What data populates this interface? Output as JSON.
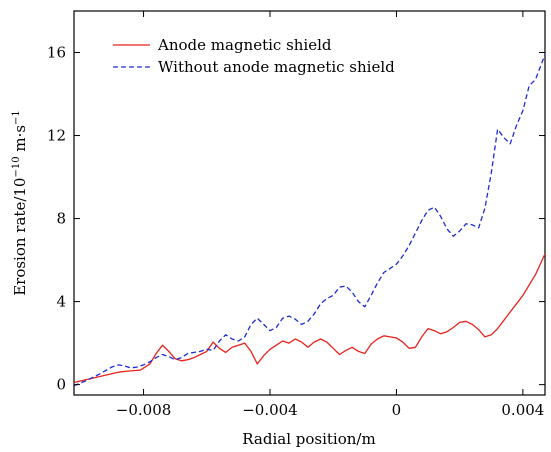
{
  "chart_data": {
    "type": "line",
    "xlabel": "Radial position/m",
    "ylabel": "Erosion rate/10",
    "ylabel_exp": "−10",
    "ylabel_unit": " m·s",
    "ylabel_unit_exp": "−1",
    "xlim": [
      -0.0102,
      0.0047
    ],
    "ylim": [
      -0.5,
      18
    ],
    "x_ticks": [
      -0.008,
      -0.004,
      0,
      0.004
    ],
    "x_tick_labels": [
      "−0.008",
      "−0.004",
      "0",
      "0.004"
    ],
    "y_ticks": [
      0,
      4,
      8,
      12,
      16
    ],
    "y_tick_labels": [
      "0",
      "4",
      "8",
      "12",
      "16"
    ],
    "grid": false,
    "legend_position": "top-left",
    "series": [
      {
        "name": "Anode magnetic shield",
        "color": "#e8231c",
        "dash": "solid",
        "x": [
          -0.0102,
          -0.0095,
          -0.0088,
          -0.0085,
          -0.0081,
          -0.0078,
          -0.0076,
          -0.0074,
          -0.0072,
          -0.007,
          -0.0068,
          -0.0066,
          -0.0064,
          -0.0062,
          -0.006,
          -0.0058,
          -0.0056,
          -0.0054,
          -0.0052,
          -0.005,
          -0.0048,
          -0.0046,
          -0.0044,
          -0.0042,
          -0.004,
          -0.0038,
          -0.0036,
          -0.0034,
          -0.0032,
          -0.003,
          -0.0028,
          -0.0026,
          -0.0024,
          -0.0022,
          -0.002,
          -0.0018,
          -0.0016,
          -0.0014,
          -0.0012,
          -0.001,
          -0.0008,
          -0.0006,
          -0.0004,
          -0.0002,
          0.0,
          0.0002,
          0.0004,
          0.0006,
          0.0008,
          0.001,
          0.0012,
          0.0014,
          0.0016,
          0.0018,
          0.002,
          0.0022,
          0.0024,
          0.0026,
          0.0028,
          0.003,
          0.0032,
          0.0034,
          0.0036,
          0.0038,
          0.004,
          0.0042,
          0.0044,
          0.0047
        ],
        "y": [
          0.1,
          0.35,
          0.6,
          0.65,
          0.7,
          1.0,
          1.5,
          1.9,
          1.6,
          1.25,
          1.15,
          1.2,
          1.3,
          1.45,
          1.6,
          2.05,
          1.75,
          1.55,
          1.8,
          1.9,
          2.0,
          1.6,
          1.0,
          1.4,
          1.7,
          1.9,
          2.1,
          2.0,
          2.2,
          2.05,
          1.8,
          2.05,
          2.2,
          2.05,
          1.75,
          1.45,
          1.65,
          1.8,
          1.6,
          1.5,
          1.95,
          2.2,
          2.35,
          2.3,
          2.25,
          2.05,
          1.75,
          1.8,
          2.3,
          2.7,
          2.6,
          2.45,
          2.55,
          2.75,
          3.0,
          3.05,
          2.9,
          2.65,
          2.3,
          2.4,
          2.7,
          3.1,
          3.5,
          3.9,
          4.3,
          4.8,
          5.3,
          6.3
        ]
      },
      {
        "name": "Without anode magnetic shield",
        "color": "#1c2bd6",
        "dash": "5,3",
        "x": [
          -0.0102,
          -0.0098,
          -0.0094,
          -0.009,
          -0.0088,
          -0.0086,
          -0.0084,
          -0.0082,
          -0.008,
          -0.0078,
          -0.0076,
          -0.0074,
          -0.0072,
          -0.007,
          -0.0068,
          -0.0066,
          -0.0064,
          -0.0062,
          -0.006,
          -0.0058,
          -0.0056,
          -0.0054,
          -0.0052,
          -0.005,
          -0.0048,
          -0.0046,
          -0.0044,
          -0.0042,
          -0.004,
          -0.0038,
          -0.0036,
          -0.0034,
          -0.0032,
          -0.003,
          -0.0028,
          -0.0026,
          -0.0024,
          -0.0022,
          -0.002,
          -0.0018,
          -0.0016,
          -0.0014,
          -0.0012,
          -0.001,
          -0.0008,
          -0.0006,
          -0.0004,
          -0.0002,
          0.0,
          0.0002,
          0.0004,
          0.0006,
          0.0008,
          0.001,
          0.0012,
          0.0014,
          0.0016,
          0.0018,
          0.002,
          0.0022,
          0.0024,
          0.0026,
          0.0028,
          0.003,
          0.0032,
          0.0034,
          0.0036,
          0.0038,
          0.004,
          0.0042,
          0.0044,
          0.0047
        ],
        "y": [
          -0.05,
          0.2,
          0.5,
          0.85,
          0.95,
          0.9,
          0.8,
          0.85,
          0.95,
          1.1,
          1.3,
          1.45,
          1.35,
          1.2,
          1.3,
          1.5,
          1.55,
          1.6,
          1.7,
          1.65,
          2.1,
          2.4,
          2.2,
          2.1,
          2.3,
          2.9,
          3.2,
          2.9,
          2.6,
          2.75,
          3.2,
          3.3,
          3.15,
          2.9,
          3.05,
          3.4,
          3.9,
          4.15,
          4.3,
          4.7,
          4.75,
          4.45,
          4.0,
          3.75,
          4.3,
          4.9,
          5.4,
          5.6,
          5.8,
          6.2,
          6.7,
          7.3,
          7.9,
          8.4,
          8.55,
          8.1,
          7.5,
          7.15,
          7.4,
          7.75,
          7.7,
          7.55,
          8.5,
          10.2,
          12.3,
          11.9,
          11.6,
          12.5,
          13.2,
          14.4,
          14.7,
          15.9
        ]
      }
    ]
  }
}
